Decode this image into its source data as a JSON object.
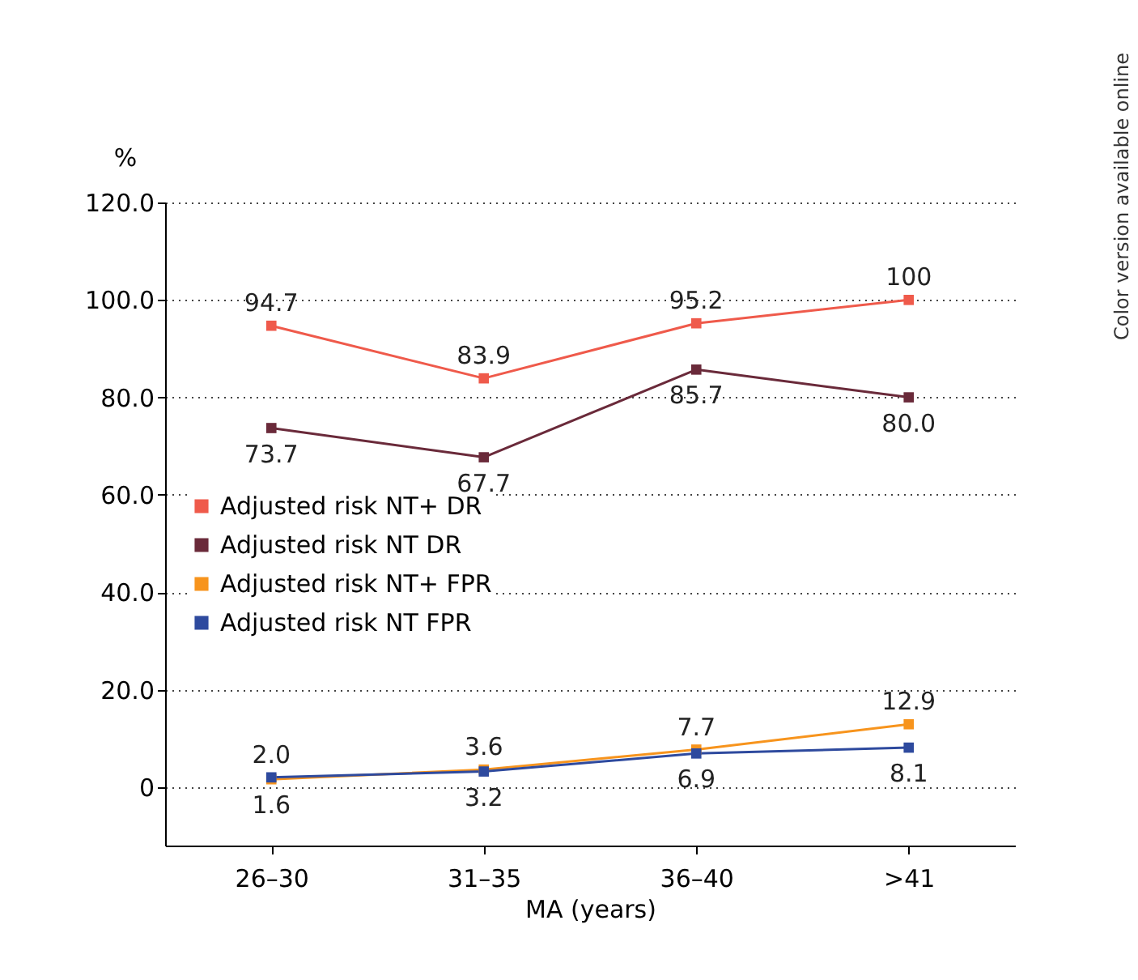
{
  "chart_data": {
    "type": "line",
    "categories": [
      "26–30",
      "31–35",
      "36–40",
      ">41"
    ],
    "xlabel": "MA (years)",
    "ylabel": "%",
    "ylim": [
      -12,
      120
    ],
    "yticks": [
      {
        "value": 0,
        "label": "0"
      },
      {
        "value": 20,
        "label": "20.0"
      },
      {
        "value": 40,
        "label": "40.0"
      },
      {
        "value": 60,
        "label": "60.0"
      },
      {
        "value": 80,
        "label": "80.0"
      },
      {
        "value": 100,
        "label": "100.0"
      },
      {
        "value": 120,
        "label": "120.0"
      }
    ],
    "grid": "y",
    "legend": "left",
    "marker": "square",
    "line_style": "solid",
    "annotations": [
      "Color version available online"
    ],
    "series": [
      {
        "name": "Adjusted risk NT+ DR",
        "color": "#ef5a4b",
        "values": [
          94.7,
          83.9,
          95.2,
          100
        ],
        "value_labels": [
          "94.7",
          "83.9",
          "95.2",
          "100"
        ]
      },
      {
        "name": "Adjusted risk NT DR",
        "color": "#6a2a3a",
        "values": [
          73.7,
          67.7,
          85.7,
          80.0
        ],
        "value_labels": [
          "73.7",
          "67.7",
          "85.7",
          "80.0"
        ]
      },
      {
        "name": "Adjusted risk NT+ FPR",
        "color": "#f7941d",
        "values": [
          1.6,
          3.6,
          7.7,
          12.9
        ],
        "value_labels": [
          "1.6",
          "3.6",
          "7.7",
          "12.9"
        ]
      },
      {
        "name": "Adjusted risk NT FPR",
        "color": "#2e4a9e",
        "values": [
          2.0,
          3.2,
          6.9,
          8.1
        ],
        "value_labels": [
          "2.0",
          "3.2",
          "6.9",
          "8.1"
        ]
      }
    ]
  }
}
